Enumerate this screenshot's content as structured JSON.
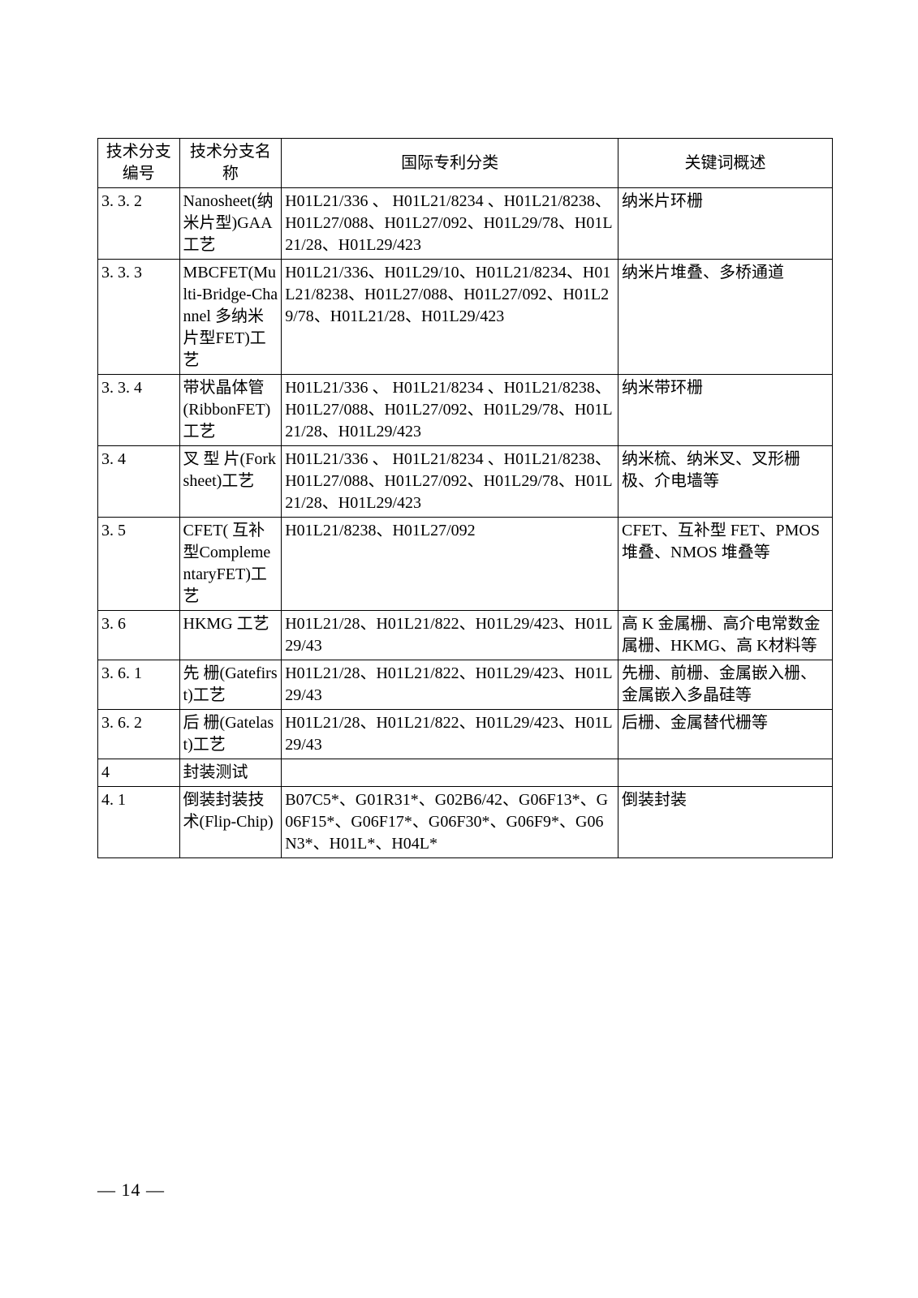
{
  "headers": {
    "col1": "技术分支编号",
    "col2": "技术分支名称",
    "col3": "国际专利分类",
    "col4": "关键词概述"
  },
  "rows": [
    {
      "id": "3. 3. 2",
      "name": "Nanosheet(纳米片型)GAA 工艺",
      "ipc": "H01L21/336 、 H01L21/8234 、H01L21/8238、H01L27/088、H01L27/092、H01L29/78、H01L21/28、H01L29/423",
      "kw": "纳米片环栅"
    },
    {
      "id": "3. 3. 3",
      "name": "MBCFET(Multi-Bridge-Channel 多纳米片型FET)工艺",
      "ipc": "H01L21/336、H01L29/10、H01L21/8234、H01L21/8238、H01L27/088、H01L27/092、H01L29/78、H01L21/28、H01L29/423",
      "kw": "纳米片堆叠、多桥通道"
    },
    {
      "id": "3. 3. 4",
      "name": "带状晶体管(RibbonFET)工艺",
      "ipc": "H01L21/336 、 H01L21/8234 、H01L21/8238、H01L27/088、H01L27/092、H01L29/78、H01L21/28、H01L29/423",
      "kw": "纳米带环栅"
    },
    {
      "id": "3. 4",
      "name": "叉 型 片(Forksheet)工艺",
      "ipc": "H01L21/336 、 H01L21/8234 、H01L21/8238、H01L27/088、H01L27/092、H01L29/78、H01L21/28、H01L29/423",
      "kw": "纳米梳、纳米叉、叉形栅极、介电墙等"
    },
    {
      "id": "3. 5",
      "name": "CFET( 互补 型ComplementaryFET)工艺",
      "ipc": "H01L21/8238、H01L27/092",
      "kw": "CFET、互补型 FET、PMOS堆叠、NMOS 堆叠等"
    },
    {
      "id": "3. 6",
      "name": "HKMG 工艺",
      "ipc": "H01L21/28、H01L21/822、H01L29/423、H01L29/43",
      "kw": "高 K 金属栅、高介电常数金属栅、HKMG、高 K材料等"
    },
    {
      "id": "3. 6. 1",
      "name": "先  栅(Gatefirst)工艺",
      "ipc": "H01L21/28、H01L21/822、H01L29/423、H01L29/43",
      "kw": "先栅、前栅、金属嵌入栅、金属嵌入多晶硅等"
    },
    {
      "id": "3. 6. 2",
      "name": "后  栅(Gatelast)工艺",
      "ipc": "H01L21/28、H01L21/822、H01L29/423、H01L29/43",
      "kw": "后栅、金属替代栅等"
    },
    {
      "id": "4",
      "name": "封装测试",
      "ipc": "",
      "kw": ""
    },
    {
      "id": "4. 1",
      "name": "倒装封装技  术(Flip-Chip)",
      "ipc": "B07C5*、G01R31*、G02B6/42、G06F13*、G06F15*、G06F17*、G06F30*、G06F9*、G06N3*、H01L*、H04L*",
      "kw": "倒装封装"
    }
  ],
  "page_number": "— 14 —"
}
